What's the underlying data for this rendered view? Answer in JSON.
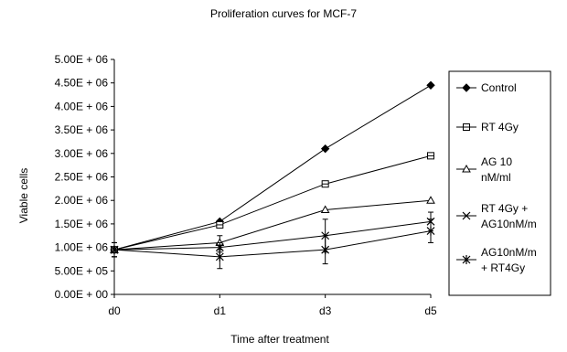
{
  "chart_data": {
    "type": "line",
    "title": "Proliferation curves for MCF-7",
    "xlabel": "Time after treatment",
    "ylabel": "Viable cells",
    "categories": [
      "d0",
      "d1",
      "d3",
      "d5"
    ],
    "ylim": [
      0,
      5000000
    ],
    "y_ticks": [
      0,
      500000,
      1000000,
      1500000,
      2000000,
      2500000,
      3000000,
      3500000,
      4000000,
      4500000,
      5000000
    ],
    "y_tick_labels": [
      "0.00E + 00",
      "5.00E + 05",
      "1.00E + 06",
      "1.50E + 06",
      "2.00E + 06",
      "2.50E + 06",
      "3.00E + 06",
      "3.50E + 06",
      "4.00E + 06",
      "4.50E + 06",
      "5.00E + 06"
    ],
    "grid": false,
    "legend_position": "right",
    "series": [
      {
        "name": "Control",
        "legend_lines": [
          "Control"
        ],
        "marker": "diamond",
        "values": [
          950000,
          1550000,
          3100000,
          4450000
        ],
        "errors": [
          150000,
          0,
          0,
          0
        ]
      },
      {
        "name": "RT 4Gy",
        "legend_lines": [
          "RT 4Gy"
        ],
        "marker": "square",
        "values": [
          950000,
          1480000,
          2350000,
          2950000
        ],
        "errors": [
          150000,
          0,
          0,
          50000
        ]
      },
      {
        "name": "AG 10 nM/ml",
        "legend_lines": [
          "AG 10",
          "nM/ml"
        ],
        "marker": "triangle",
        "values": [
          950000,
          1100000,
          1800000,
          2000000
        ],
        "errors": [
          150000,
          150000,
          0,
          0
        ]
      },
      {
        "name": "RT 4Gy + AG10nM/m",
        "legend_lines": [
          "RT 4Gy +",
          "AG10nM/m"
        ],
        "marker": "x",
        "values": [
          950000,
          1000000,
          1250000,
          1550000
        ],
        "errors": [
          150000,
          100000,
          350000,
          200000
        ]
      },
      {
        "name": "AG10nM/m + RT4Gy",
        "legend_lines": [
          "AG10nM/m",
          "+ RT4Gy"
        ],
        "marker": "asterisk",
        "values": [
          950000,
          800000,
          950000,
          1350000
        ],
        "errors": [
          150000,
          250000,
          300000,
          250000
        ]
      }
    ]
  }
}
